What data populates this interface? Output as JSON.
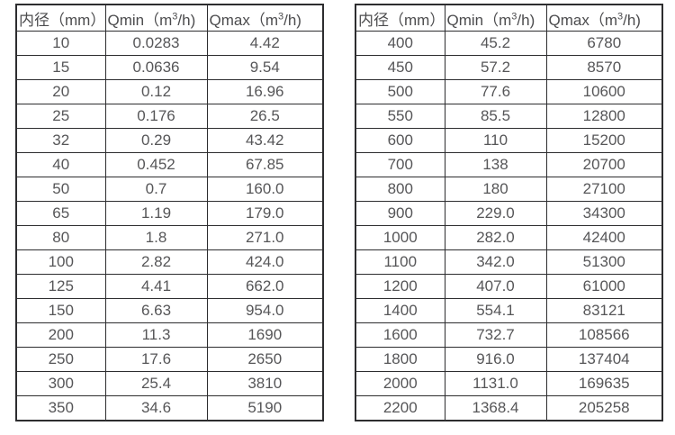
{
  "colors": {
    "border": "#2d2d2f",
    "header_text": "#4c4c4e",
    "cell_text": "#565658",
    "background": "#ffffff"
  },
  "tables": [
    {
      "name": "flow-range-small-diameters",
      "headers": [
        {
          "pre": "内径（mm）",
          "sup": "",
          "post": ""
        },
        {
          "pre": "Qmin（m",
          "sup": "3",
          "post": "/h)"
        },
        {
          "pre": "Qmax（m",
          "sup": "3",
          "post": "/h)"
        }
      ],
      "rows": [
        [
          "10",
          "0.0283",
          "4.42"
        ],
        [
          "15",
          "0.0636",
          "9.54"
        ],
        [
          "20",
          "0.12",
          "16.96"
        ],
        [
          "25",
          "0.176",
          "26.5"
        ],
        [
          "32",
          "0.29",
          "43.42"
        ],
        [
          "40",
          "0.452",
          "67.85"
        ],
        [
          "50",
          "0.7",
          "160.0"
        ],
        [
          "65",
          "1.19",
          "179.0"
        ],
        [
          "80",
          "1.8",
          "271.0"
        ],
        [
          "100",
          "2.82",
          "424.0"
        ],
        [
          "125",
          "4.41",
          "662.0"
        ],
        [
          "150",
          "6.63",
          "954.0"
        ],
        [
          "200",
          "11.3",
          "1690"
        ],
        [
          "250",
          "17.6",
          "2650"
        ],
        [
          "300",
          "25.4",
          "3810"
        ],
        [
          "350",
          "34.6",
          "5190"
        ]
      ]
    },
    {
      "name": "flow-range-large-diameters",
      "headers": [
        {
          "pre": "内径（mm）",
          "sup": "",
          "post": ""
        },
        {
          "pre": "Qmin（m",
          "sup": "3",
          "post": "/h)"
        },
        {
          "pre": "Qmax（m",
          "sup": "3",
          "post": "/h)"
        }
      ],
      "rows": [
        [
          "400",
          "45.2",
          "6780"
        ],
        [
          "450",
          "57.2",
          "8570"
        ],
        [
          "500",
          "77.6",
          "10600"
        ],
        [
          "550",
          "85.5",
          "12800"
        ],
        [
          "600",
          "110",
          "15200"
        ],
        [
          "700",
          "138",
          "20700"
        ],
        [
          "800",
          "180",
          "27100"
        ],
        [
          "900",
          "229.0",
          "34300"
        ],
        [
          "1000",
          "282.0",
          "42400"
        ],
        [
          "1100",
          "342.0",
          "51300"
        ],
        [
          "1200",
          "407.0",
          "61000"
        ],
        [
          "1400",
          "554.1",
          "83121"
        ],
        [
          "1600",
          "732.7",
          "108566"
        ],
        [
          "1800",
          "916.0",
          "137404"
        ],
        [
          "2000",
          "1131.0",
          "169635"
        ],
        [
          "2200",
          "1368.4",
          "205258"
        ]
      ]
    }
  ]
}
